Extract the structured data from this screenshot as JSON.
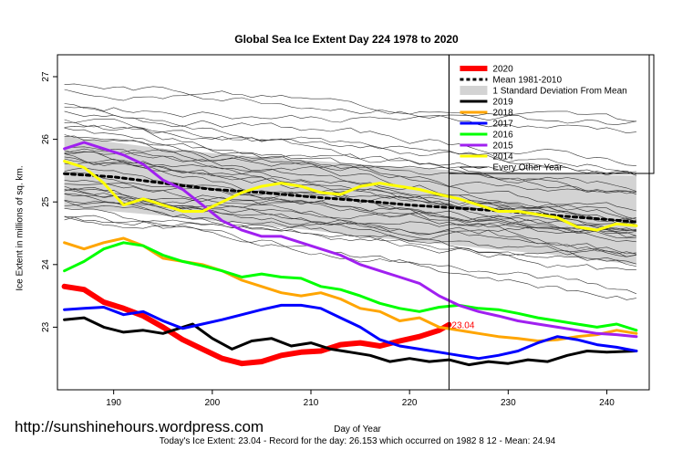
{
  "chart_data": {
    "type": "line",
    "title": "Global Sea Ice Extent Day 224 1978 to 2020",
    "xlabel": "Day of Year",
    "ylabel": "Ice Extent in millions of sq. km.",
    "xlim": [
      184.3,
      244.3
    ],
    "ylim": [
      22.0,
      27.35
    ],
    "x_ticks": [
      190,
      200,
      210,
      220,
      230,
      240
    ],
    "y_ticks": [
      23,
      24,
      25,
      26,
      27
    ],
    "current_day": 224,
    "current_value_label": "23.04",
    "legend": [
      {
        "label": "2020",
        "color": "#ff0000",
        "style": "thick"
      },
      {
        "label": "Mean 1981-2010",
        "color": "#000000",
        "style": "dotted"
      },
      {
        "label": "1 Standard Deviation From Mean",
        "color": "#d3d3d3",
        "style": "band"
      },
      {
        "label": "2019",
        "color": "#000000",
        "style": "line"
      },
      {
        "label": "2018",
        "color": "#ffa500",
        "style": "line"
      },
      {
        "label": "2017",
        "color": "#0000ff",
        "style": "line"
      },
      {
        "label": "2016",
        "color": "#00ff00",
        "style": "line"
      },
      {
        "label": "2015",
        "color": "#a020f0",
        "style": "line"
      },
      {
        "label": "2014",
        "color": "#ffff00",
        "style": "line"
      },
      {
        "label": "Every Other Year",
        "color": "#000000",
        "style": "thin"
      }
    ],
    "series": [
      {
        "name": "2020",
        "color": "#ff0000",
        "points": [
          [
            185,
            23.65
          ],
          [
            187,
            23.6
          ],
          [
            189,
            23.4
          ],
          [
            191,
            23.3
          ],
          [
            193,
            23.18
          ],
          [
            195,
            23.0
          ],
          [
            197,
            22.8
          ],
          [
            199,
            22.65
          ],
          [
            201,
            22.5
          ],
          [
            203,
            22.42
          ],
          [
            205,
            22.45
          ],
          [
            207,
            22.55
          ],
          [
            209,
            22.6
          ],
          [
            211,
            22.62
          ],
          [
            213,
            22.72
          ],
          [
            215,
            22.75
          ],
          [
            217,
            22.7
          ],
          [
            219,
            22.78
          ],
          [
            221,
            22.85
          ],
          [
            223,
            22.95
          ],
          [
            224,
            23.04
          ]
        ]
      },
      {
        "name": "Mean 1981-2010",
        "color": "#000000",
        "points": [
          [
            185,
            25.45
          ],
          [
            190,
            25.4
          ],
          [
            195,
            25.3
          ],
          [
            200,
            25.2
          ],
          [
            205,
            25.15
          ],
          [
            210,
            25.08
          ],
          [
            215,
            25.02
          ],
          [
            220,
            24.95
          ],
          [
            225,
            24.9
          ],
          [
            230,
            24.85
          ],
          [
            235,
            24.78
          ],
          [
            240,
            24.72
          ],
          [
            243,
            24.68
          ]
        ]
      },
      {
        "name": "2019",
        "color": "#000000",
        "points": [
          [
            185,
            23.12
          ],
          [
            187,
            23.15
          ],
          [
            189,
            23.0
          ],
          [
            191,
            22.92
          ],
          [
            193,
            22.95
          ],
          [
            195,
            22.9
          ],
          [
            197,
            23.0
          ],
          [
            198,
            23.05
          ],
          [
            200,
            22.82
          ],
          [
            202,
            22.65
          ],
          [
            204,
            22.78
          ],
          [
            206,
            22.82
          ],
          [
            208,
            22.7
          ],
          [
            210,
            22.75
          ],
          [
            212,
            22.65
          ],
          [
            214,
            22.6
          ],
          [
            216,
            22.55
          ],
          [
            218,
            22.45
          ],
          [
            220,
            22.5
          ],
          [
            222,
            22.45
          ],
          [
            224,
            22.48
          ],
          [
            226,
            22.4
          ],
          [
            228,
            22.45
          ],
          [
            230,
            22.42
          ],
          [
            232,
            22.48
          ],
          [
            234,
            22.45
          ],
          [
            236,
            22.55
          ],
          [
            238,
            22.62
          ],
          [
            240,
            22.6
          ],
          [
            243,
            22.62
          ]
        ]
      },
      {
        "name": "2018",
        "color": "#ffa500",
        "points": [
          [
            185,
            24.35
          ],
          [
            187,
            24.25
          ],
          [
            189,
            24.35
          ],
          [
            191,
            24.42
          ],
          [
            193,
            24.3
          ],
          [
            195,
            24.1
          ],
          [
            197,
            24.05
          ],
          [
            199,
            24.0
          ],
          [
            201,
            23.9
          ],
          [
            203,
            23.75
          ],
          [
            205,
            23.65
          ],
          [
            207,
            23.55
          ],
          [
            209,
            23.5
          ],
          [
            211,
            23.55
          ],
          [
            213,
            23.45
          ],
          [
            215,
            23.3
          ],
          [
            217,
            23.25
          ],
          [
            219,
            23.1
          ],
          [
            221,
            23.15
          ],
          [
            223,
            23.0
          ],
          [
            225,
            22.95
          ],
          [
            227,
            22.9
          ],
          [
            229,
            22.85
          ],
          [
            231,
            22.82
          ],
          [
            233,
            22.78
          ],
          [
            235,
            22.8
          ],
          [
            237,
            22.85
          ],
          [
            239,
            22.88
          ],
          [
            241,
            22.95
          ],
          [
            243,
            22.9
          ]
        ]
      },
      {
        "name": "2017",
        "color": "#0000ff",
        "points": [
          [
            185,
            23.28
          ],
          [
            187,
            23.3
          ],
          [
            189,
            23.32
          ],
          [
            191,
            23.2
          ],
          [
            193,
            23.25
          ],
          [
            195,
            23.1
          ],
          [
            197,
            22.98
          ],
          [
            199,
            23.05
          ],
          [
            201,
            23.12
          ],
          [
            203,
            23.2
          ],
          [
            205,
            23.28
          ],
          [
            207,
            23.35
          ],
          [
            209,
            23.35
          ],
          [
            211,
            23.3
          ],
          [
            213,
            23.15
          ],
          [
            215,
            23.0
          ],
          [
            217,
            22.8
          ],
          [
            219,
            22.7
          ],
          [
            221,
            22.65
          ],
          [
            223,
            22.6
          ],
          [
            225,
            22.55
          ],
          [
            227,
            22.5
          ],
          [
            229,
            22.55
          ],
          [
            231,
            22.62
          ],
          [
            233,
            22.75
          ],
          [
            235,
            22.85
          ],
          [
            237,
            22.8
          ],
          [
            239,
            22.72
          ],
          [
            241,
            22.68
          ],
          [
            243,
            22.62
          ]
        ]
      },
      {
        "name": "2016",
        "color": "#00ff00",
        "points": [
          [
            185,
            23.9
          ],
          [
            187,
            24.05
          ],
          [
            189,
            24.25
          ],
          [
            191,
            24.35
          ],
          [
            193,
            24.3
          ],
          [
            195,
            24.15
          ],
          [
            197,
            24.05
          ],
          [
            199,
            23.98
          ],
          [
            201,
            23.9
          ],
          [
            203,
            23.8
          ],
          [
            205,
            23.85
          ],
          [
            207,
            23.8
          ],
          [
            209,
            23.78
          ],
          [
            211,
            23.65
          ],
          [
            213,
            23.6
          ],
          [
            215,
            23.5
          ],
          [
            217,
            23.38
          ],
          [
            219,
            23.3
          ],
          [
            221,
            23.25
          ],
          [
            223,
            23.32
          ],
          [
            225,
            23.35
          ],
          [
            227,
            23.3
          ],
          [
            229,
            23.28
          ],
          [
            231,
            23.22
          ],
          [
            233,
            23.15
          ],
          [
            235,
            23.1
          ],
          [
            237,
            23.05
          ],
          [
            239,
            23.0
          ],
          [
            241,
            23.05
          ],
          [
            243,
            22.95
          ]
        ]
      },
      {
        "name": "2015",
        "color": "#a020f0",
        "points": [
          [
            185,
            25.85
          ],
          [
            187,
            25.95
          ],
          [
            189,
            25.85
          ],
          [
            191,
            25.75
          ],
          [
            193,
            25.6
          ],
          [
            195,
            25.35
          ],
          [
            197,
            25.2
          ],
          [
            199,
            24.95
          ],
          [
            201,
            24.7
          ],
          [
            203,
            24.55
          ],
          [
            205,
            24.45
          ],
          [
            207,
            24.45
          ],
          [
            209,
            24.35
          ],
          [
            211,
            24.25
          ],
          [
            213,
            24.15
          ],
          [
            215,
            24.0
          ],
          [
            217,
            23.9
          ],
          [
            219,
            23.8
          ],
          [
            221,
            23.7
          ],
          [
            223,
            23.5
          ],
          [
            225,
            23.35
          ],
          [
            227,
            23.25
          ],
          [
            229,
            23.18
          ],
          [
            231,
            23.1
          ],
          [
            233,
            23.05
          ],
          [
            235,
            23.0
          ],
          [
            237,
            22.95
          ],
          [
            239,
            22.9
          ],
          [
            241,
            22.88
          ],
          [
            243,
            22.85
          ]
        ]
      },
      {
        "name": "2014",
        "color": "#ffff00",
        "points": [
          [
            185,
            25.65
          ],
          [
            187,
            25.55
          ],
          [
            189,
            25.3
          ],
          [
            191,
            24.95
          ],
          [
            193,
            25.05
          ],
          [
            195,
            24.95
          ],
          [
            197,
            24.85
          ],
          [
            199,
            24.85
          ],
          [
            201,
            25.0
          ],
          [
            203,
            25.15
          ],
          [
            205,
            25.25
          ],
          [
            207,
            25.3
          ],
          [
            209,
            25.25
          ],
          [
            211,
            25.15
          ],
          [
            213,
            25.12
          ],
          [
            215,
            25.25
          ],
          [
            217,
            25.3
          ],
          [
            219,
            25.25
          ],
          [
            221,
            25.2
          ],
          [
            223,
            25.12
          ],
          [
            225,
            25.05
          ],
          [
            227,
            24.95
          ],
          [
            229,
            24.85
          ],
          [
            231,
            24.85
          ],
          [
            233,
            24.8
          ],
          [
            235,
            24.75
          ],
          [
            237,
            24.6
          ],
          [
            239,
            24.55
          ],
          [
            241,
            24.65
          ],
          [
            243,
            24.62
          ]
        ]
      }
    ],
    "std_band": {
      "x": [
        185,
        190,
        195,
        200,
        205,
        210,
        215,
        220,
        225,
        230,
        235,
        240,
        243
      ],
      "upper": [
        26.05,
        25.95,
        25.85,
        25.78,
        25.72,
        25.66,
        25.6,
        25.55,
        25.5,
        25.48,
        25.45,
        25.43,
        25.42
      ],
      "lower": [
        24.9,
        24.85,
        24.78,
        24.7,
        24.62,
        24.55,
        24.45,
        24.38,
        24.3,
        24.22,
        24.15,
        24.05,
        24.0
      ]
    },
    "every_other_year_count": 36
  },
  "url_text": "http://sunshinehours.wordpress.com",
  "footer": {
    "todays_extent": "Today's Ice Extent: 23.04",
    "record": " - Record for the day: 26.153 which occurred on 1982 8 12",
    "mean": " - Mean: 24.94"
  }
}
